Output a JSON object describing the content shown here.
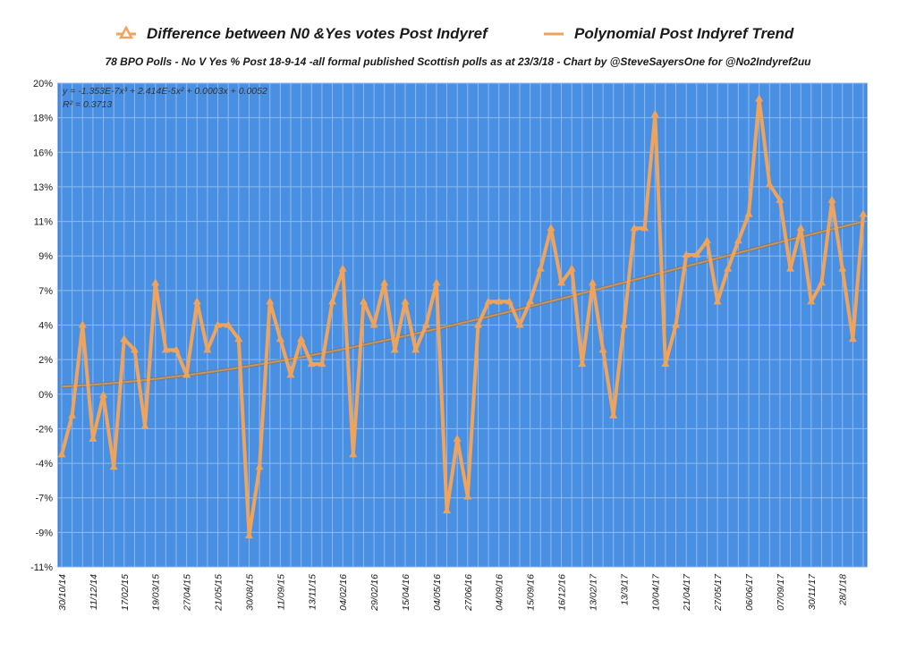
{
  "chart_data": {
    "type": "line",
    "title": "",
    "subtitle": "78 BPO Polls - No V Yes % Post 18-9-14 -all formal published Scottish polls as at 23/3/18 - Chart by @SteveSayersOne for @No2Indyref2uu",
    "ylim": [
      -11,
      20
    ],
    "y_ticks": [
      "20%",
      "18%",
      "16%",
      "13%",
      "11%",
      "9%",
      "7%",
      "4%",
      "2%",
      "0%",
      "-2%",
      "-4%",
      "-7%",
      "-9%",
      "-11%"
    ],
    "y_tick_values": [
      20,
      17.79,
      15.57,
      13.36,
      11.14,
      8.93,
      6.71,
      4.5,
      2.29,
      0.07,
      -2.14,
      -4.36,
      -6.57,
      -8.79,
      -11
    ],
    "x_tick_labels": [
      "30/10/14",
      "11/12/14",
      "17/02/15",
      "19/03/15",
      "27/04/15",
      "21/05/15",
      "30/08/15",
      "11/09/15",
      "13/11/15",
      "04/02/16",
      "29/02/16",
      "15/04/16",
      "04/05/16",
      "27/06/16",
      "04/09/16",
      "15/09/16",
      "16/12/16",
      "13/02/17",
      "13/3/17",
      "10/04/17",
      "21/04/17",
      "27/05/17",
      "06/06/17",
      "07/09/17",
      "30/11/17",
      "28/1/18"
    ],
    "x_tick_index": [
      0,
      3,
      6,
      9,
      12,
      15,
      18,
      21,
      24,
      27,
      30,
      33,
      36,
      39,
      42,
      45,
      48,
      51,
      54,
      57,
      60,
      63,
      66,
      69,
      72,
      75
    ],
    "grid": true,
    "background_color": "#4a90e2",
    "series": [
      {
        "name": "Difference between N0 &Yes votes Post Indyref",
        "color": "#f0a35b",
        "marker": "triangle",
        "values": [
          -3.8,
          -1.3,
          4.5,
          -2.8,
          0,
          -4.6,
          3.6,
          2.9,
          -2.0,
          7.2,
          2.9,
          2.9,
          1.3,
          6.0,
          2.9,
          4.5,
          4.5,
          3.6,
          -9.0,
          -4.6,
          6.0,
          3.6,
          1.3,
          3.6,
          2.0,
          2.0,
          6.0,
          8.1,
          -3.8,
          6.0,
          4.5,
          7.2,
          2.9,
          6.0,
          2.9,
          4.5,
          7.2,
          -7.4,
          -2.8,
          -6.5,
          4.5,
          6.0,
          6.0,
          6.0,
          4.5,
          6.0,
          8.1,
          10.7,
          7.2,
          8.1,
          2.0,
          7.2,
          2.9,
          -1.3,
          4.5,
          10.7,
          10.7,
          18.0,
          2.0,
          4.5,
          9.0,
          9.0,
          9.9,
          6.0,
          8.1,
          9.9,
          11.6,
          19.0,
          13.5,
          12.5,
          8.1,
          10.7,
          6.0,
          7.2,
          12.5,
          8.1,
          3.6,
          11.6
        ]
      },
      {
        "name": "Polynomial Post Indyref Trend",
        "color": "#c9955a",
        "equation": "y = -1.353E-7x³ + 2.414E-5x² + 0.0003x + 0.0052",
        "r2_label": "R² = 0.3713",
        "coefficients": [
          -1.353e-07,
          2.414e-05,
          0.0003,
          0.0052
        ]
      }
    ]
  }
}
